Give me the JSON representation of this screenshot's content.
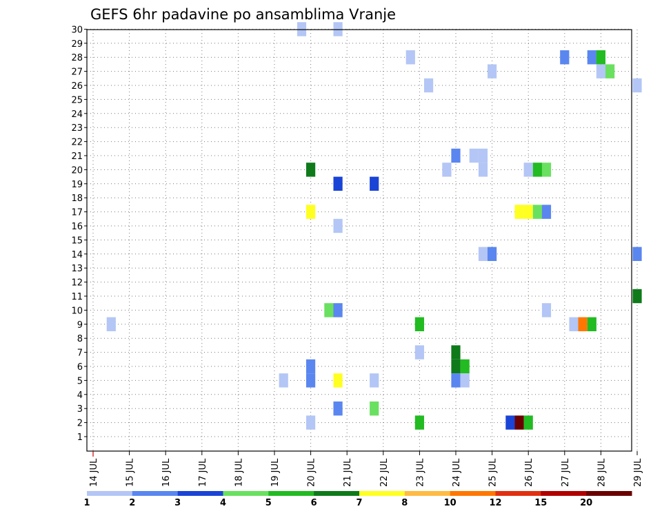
{
  "chart_data": {
    "type": "heatmap",
    "title": "GEFS 6hr padavine po ansamblima Vranje",
    "x_date_labels": [
      "14 JUL",
      "15 JUL",
      "16 JUL",
      "17 JUL",
      "18 JUL",
      "19 JUL",
      "20 JUL",
      "21 JUL",
      "22 JUL",
      "23 JUL",
      "24 JUL",
      "25 JUL",
      "26 JUL",
      "27 JUL",
      "28 JUL",
      "29 JUL"
    ],
    "x_unit": "6-hour steps starting 14 JUL 00Z",
    "xlim": [
      0,
      60
    ],
    "y_labels": [
      "1",
      "2",
      "3",
      "4",
      "5",
      "6",
      "7",
      "8",
      "9",
      "10",
      "11",
      "12",
      "13",
      "14",
      "15",
      "16",
      "17",
      "18",
      "19",
      "20",
      "21",
      "22",
      "23",
      "24",
      "25",
      "26",
      "27",
      "28",
      "29",
      "30"
    ],
    "ylim": [
      1,
      30
    ],
    "grid": true,
    "colorbar": {
      "labels": [
        "1",
        "2",
        "3",
        "4",
        "5",
        "6",
        "7",
        "8",
        "10",
        "12",
        "15",
        "20"
      ],
      "colors": [
        "#b3c6f5",
        "#5a86ef",
        "#1a44d6",
        "#6ae060",
        "#22bb22",
        "#0e7a1a",
        "#ffff22",
        "#ffbb44",
        "#ff7700",
        "#e03010",
        "#b00000",
        "#6a0000"
      ]
    },
    "cells": [
      {
        "step": 23,
        "member": 30,
        "level": 0
      },
      {
        "step": 27,
        "member": 30,
        "level": 0
      },
      {
        "step": 35,
        "member": 28,
        "level": 0
      },
      {
        "step": 52,
        "member": 28,
        "level": 1
      },
      {
        "step": 55,
        "member": 28,
        "level": 1
      },
      {
        "step": 56,
        "member": 28,
        "level": 4
      },
      {
        "step": 44,
        "member": 27,
        "level": 0
      },
      {
        "step": 56,
        "member": 27,
        "level": 0
      },
      {
        "step": 57,
        "member": 27,
        "level": 3
      },
      {
        "step": 37,
        "member": 26,
        "level": 0
      },
      {
        "step": 60,
        "member": 26,
        "level": 0
      },
      {
        "step": 40,
        "member": 21,
        "level": 1
      },
      {
        "step": 42,
        "member": 21,
        "level": 0
      },
      {
        "step": 43,
        "member": 21,
        "level": 0
      },
      {
        "step": 39,
        "member": 20,
        "level": 0
      },
      {
        "step": 24,
        "member": 20,
        "level": 5
      },
      {
        "step": 43,
        "member": 20,
        "level": 0
      },
      {
        "step": 48,
        "member": 20,
        "level": 0
      },
      {
        "step": 49,
        "member": 20,
        "level": 4
      },
      {
        "step": 50,
        "member": 20,
        "level": 3
      },
      {
        "step": 27,
        "member": 19,
        "level": 2
      },
      {
        "step": 31,
        "member": 19,
        "level": 2
      },
      {
        "step": 24,
        "member": 17,
        "level": 6
      },
      {
        "step": 47,
        "member": 17,
        "level": 6
      },
      {
        "step": 48,
        "member": 17,
        "level": 6
      },
      {
        "step": 49,
        "member": 17,
        "level": 3
      },
      {
        "step": 50,
        "member": 17,
        "level": 1
      },
      {
        "step": 27,
        "member": 16,
        "level": 0
      },
      {
        "step": 43,
        "member": 14,
        "level": 0
      },
      {
        "step": 44,
        "member": 14,
        "level": 1
      },
      {
        "step": 60,
        "member": 14,
        "level": 1
      },
      {
        "step": 60,
        "member": 11,
        "level": 5
      },
      {
        "step": 26,
        "member": 10,
        "level": 3
      },
      {
        "step": 27,
        "member": 10,
        "level": 1
      },
      {
        "step": 50,
        "member": 10,
        "level": 0
      },
      {
        "step": 2,
        "member": 9,
        "level": 0
      },
      {
        "step": 36,
        "member": 9,
        "level": 4
      },
      {
        "step": 53,
        "member": 9,
        "level": 0
      },
      {
        "step": 54,
        "member": 9,
        "level": 8
      },
      {
        "step": 55,
        "member": 9,
        "level": 4
      },
      {
        "step": 36,
        "member": 7,
        "level": 0
      },
      {
        "step": 40,
        "member": 7,
        "level": 5
      },
      {
        "step": 24,
        "member": 6,
        "level": 1
      },
      {
        "step": 40,
        "member": 6,
        "level": 5
      },
      {
        "step": 41,
        "member": 6,
        "level": 4
      },
      {
        "step": 21,
        "member": 5,
        "level": 0
      },
      {
        "step": 24,
        "member": 5,
        "level": 1
      },
      {
        "step": 27,
        "member": 5,
        "level": 6
      },
      {
        "step": 31,
        "member": 5,
        "level": 0
      },
      {
        "step": 40,
        "member": 5,
        "level": 1
      },
      {
        "step": 41,
        "member": 5,
        "level": 0
      },
      {
        "step": 27,
        "member": 3,
        "level": 1
      },
      {
        "step": 31,
        "member": 3,
        "level": 3
      },
      {
        "step": 24,
        "member": 2,
        "level": 0
      },
      {
        "step": 36,
        "member": 2,
        "level": 4
      },
      {
        "step": 46,
        "member": 2,
        "level": 2
      },
      {
        "step": 47,
        "member": 2,
        "level": 11
      },
      {
        "step": 48,
        "member": 2,
        "level": 4
      }
    ]
  }
}
